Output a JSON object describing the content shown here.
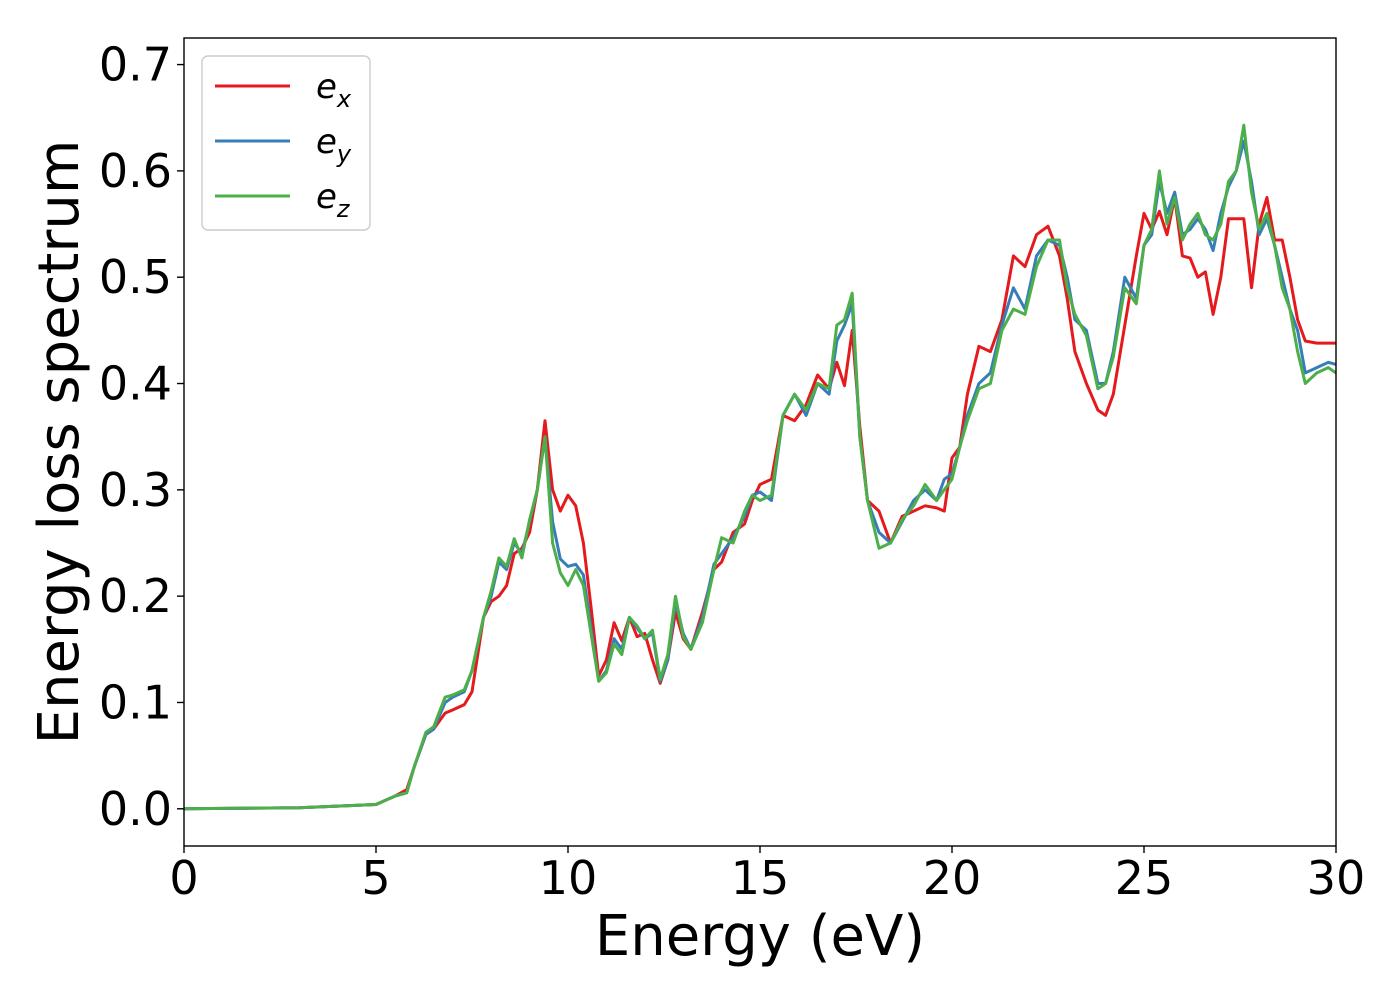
{
  "chart_data": {
    "type": "line",
    "title": "",
    "xlabel": "Energy (eV)",
    "ylabel": "Energy loss spectrum",
    "xlim": [
      0,
      30
    ],
    "ylim": [
      -0.035,
      0.725
    ],
    "xticks": [
      0,
      5,
      10,
      15,
      20,
      25,
      30
    ],
    "yticks": [
      0.0,
      0.1,
      0.2,
      0.3,
      0.4,
      0.5,
      0.6,
      0.7
    ],
    "xtick_labels": [
      "0",
      "5",
      "10",
      "15",
      "20",
      "25",
      "30"
    ],
    "ytick_labels": [
      "0.0",
      "0.1",
      "0.2",
      "0.3",
      "0.4",
      "0.5",
      "0.6",
      "0.7"
    ],
    "grid": false,
    "legend_position": "top-left",
    "series": [
      {
        "name": "e_x",
        "legend_base": "e",
        "legend_sub": "x",
        "color": "#e41a1c",
        "x": [
          0,
          3,
          5,
          5.5,
          5.8,
          6,
          6.3,
          6.5,
          6.8,
          7,
          7.3,
          7.5,
          7.8,
          8,
          8.2,
          8.4,
          8.6,
          8.8,
          9,
          9.2,
          9.4,
          9.6,
          9.8,
          10,
          10.2,
          10.4,
          10.6,
          10.8,
          11,
          11.2,
          11.4,
          11.6,
          11.8,
          12,
          12.2,
          12.4,
          12.6,
          12.8,
          13,
          13.2,
          13.5,
          13.8,
          14,
          14.3,
          14.6,
          14.8,
          15,
          15.3,
          15.6,
          15.9,
          16.2,
          16.5,
          16.8,
          17,
          17.2,
          17.4,
          17.6,
          17.8,
          18.1,
          18.4,
          18.7,
          19,
          19.3,
          19.6,
          19.8,
          20,
          20.2,
          20.4,
          20.7,
          21,
          21.3,
          21.6,
          21.9,
          22.2,
          22.5,
          22.8,
          23,
          23.2,
          23.5,
          23.8,
          24,
          24.2,
          24.5,
          24.8,
          25,
          25.2,
          25.4,
          25.6,
          25.8,
          26,
          26.2,
          26.4,
          26.6,
          26.8,
          27,
          27.2,
          27.4,
          27.6,
          27.8,
          28,
          28.2,
          28.4,
          28.6,
          28.8,
          29,
          29.2,
          29.5,
          29.8,
          30
        ],
        "y": [
          0,
          0.001,
          0.004,
          0.012,
          0.018,
          0.04,
          0.07,
          0.075,
          0.09,
          0.093,
          0.098,
          0.11,
          0.18,
          0.195,
          0.2,
          0.21,
          0.24,
          0.245,
          0.26,
          0.3,
          0.365,
          0.3,
          0.28,
          0.295,
          0.285,
          0.25,
          0.19,
          0.125,
          0.14,
          0.175,
          0.158,
          0.18,
          0.162,
          0.165,
          0.14,
          0.118,
          0.14,
          0.185,
          0.16,
          0.15,
          0.185,
          0.225,
          0.232,
          0.26,
          0.268,
          0.29,
          0.305,
          0.31,
          0.37,
          0.365,
          0.38,
          0.408,
          0.395,
          0.42,
          0.398,
          0.45,
          0.36,
          0.29,
          0.28,
          0.25,
          0.275,
          0.28,
          0.285,
          0.283,
          0.28,
          0.33,
          0.34,
          0.39,
          0.435,
          0.43,
          0.46,
          0.52,
          0.51,
          0.54,
          0.548,
          0.52,
          0.48,
          0.43,
          0.4,
          0.375,
          0.37,
          0.39,
          0.455,
          0.52,
          0.56,
          0.545,
          0.562,
          0.54,
          0.575,
          0.52,
          0.518,
          0.5,
          0.505,
          0.465,
          0.5,
          0.555,
          0.555,
          0.555,
          0.49,
          0.55,
          0.575,
          0.535,
          0.535,
          0.5,
          0.46,
          0.44,
          0.438,
          0.438,
          0.438
        ]
      },
      {
        "name": "e_y",
        "legend_base": "e",
        "legend_sub": "y",
        "color": "#377eb8",
        "x": [
          0,
          3,
          5,
          5.5,
          5.8,
          6,
          6.3,
          6.5,
          6.8,
          7,
          7.3,
          7.5,
          7.8,
          8,
          8.2,
          8.4,
          8.6,
          8.8,
          9,
          9.2,
          9.4,
          9.6,
          9.8,
          10,
          10.2,
          10.4,
          10.6,
          10.8,
          11,
          11.2,
          11.4,
          11.6,
          11.8,
          12,
          12.2,
          12.4,
          12.6,
          12.8,
          13,
          13.2,
          13.5,
          13.8,
          14,
          14.3,
          14.6,
          14.8,
          15,
          15.3,
          15.6,
          15.9,
          16.2,
          16.5,
          16.8,
          17,
          17.2,
          17.4,
          17.6,
          17.8,
          18.1,
          18.4,
          18.7,
          19,
          19.3,
          19.6,
          19.8,
          20,
          20.2,
          20.4,
          20.7,
          21,
          21.3,
          21.6,
          21.9,
          22.2,
          22.5,
          22.8,
          23,
          23.2,
          23.5,
          23.8,
          24,
          24.2,
          24.5,
          24.8,
          25,
          25.2,
          25.4,
          25.6,
          25.8,
          26,
          26.2,
          26.4,
          26.6,
          26.8,
          27,
          27.2,
          27.4,
          27.6,
          27.8,
          28,
          28.2,
          28.4,
          28.6,
          28.8,
          29,
          29.2,
          29.5,
          29.8,
          30
        ],
        "y": [
          0,
          0.001,
          0.004,
          0.012,
          0.015,
          0.04,
          0.07,
          0.075,
          0.1,
          0.105,
          0.11,
          0.13,
          0.18,
          0.2,
          0.232,
          0.225,
          0.25,
          0.24,
          0.27,
          0.3,
          0.35,
          0.27,
          0.235,
          0.228,
          0.23,
          0.22,
          0.17,
          0.12,
          0.13,
          0.16,
          0.15,
          0.18,
          0.17,
          0.16,
          0.165,
          0.12,
          0.14,
          0.195,
          0.165,
          0.15,
          0.18,
          0.23,
          0.24,
          0.255,
          0.275,
          0.295,
          0.298,
          0.29,
          0.37,
          0.39,
          0.37,
          0.4,
          0.39,
          0.44,
          0.455,
          0.475,
          0.35,
          0.29,
          0.26,
          0.25,
          0.27,
          0.29,
          0.3,
          0.29,
          0.31,
          0.315,
          0.34,
          0.37,
          0.4,
          0.41,
          0.455,
          0.49,
          0.47,
          0.52,
          0.535,
          0.53,
          0.5,
          0.46,
          0.45,
          0.4,
          0.4,
          0.43,
          0.5,
          0.48,
          0.53,
          0.54,
          0.59,
          0.56,
          0.58,
          0.54,
          0.545,
          0.555,
          0.545,
          0.525,
          0.56,
          0.585,
          0.6,
          0.628,
          0.59,
          0.54,
          0.555,
          0.53,
          0.5,
          0.47,
          0.45,
          0.41,
          0.415,
          0.42,
          0.418
        ]
      },
      {
        "name": "e_z",
        "legend_base": "e",
        "legend_sub": "z",
        "color": "#4daf4a",
        "x": [
          0,
          3,
          5,
          5.5,
          5.8,
          6,
          6.3,
          6.5,
          6.8,
          7,
          7.3,
          7.5,
          7.8,
          8,
          8.2,
          8.4,
          8.6,
          8.8,
          9,
          9.2,
          9.4,
          9.6,
          9.8,
          10,
          10.2,
          10.4,
          10.6,
          10.8,
          11,
          11.2,
          11.4,
          11.6,
          11.8,
          12,
          12.2,
          12.4,
          12.6,
          12.8,
          13,
          13.2,
          13.5,
          13.8,
          14,
          14.3,
          14.6,
          14.8,
          15,
          15.3,
          15.6,
          15.9,
          16.2,
          16.5,
          16.8,
          17,
          17.2,
          17.4,
          17.6,
          17.8,
          18.1,
          18.4,
          18.7,
          19,
          19.3,
          19.6,
          19.8,
          20,
          20.2,
          20.4,
          20.7,
          21,
          21.3,
          21.6,
          21.9,
          22.2,
          22.5,
          22.8,
          23,
          23.2,
          23.5,
          23.8,
          24,
          24.2,
          24.5,
          24.8,
          25,
          25.2,
          25.4,
          25.6,
          25.8,
          26,
          26.2,
          26.4,
          26.6,
          26.8,
          27,
          27.2,
          27.4,
          27.6,
          27.8,
          28,
          28.2,
          28.4,
          28.6,
          28.8,
          29,
          29.2,
          29.5,
          29.8,
          30
        ],
        "y": [
          0,
          0.001,
          0.004,
          0.012,
          0.015,
          0.04,
          0.072,
          0.077,
          0.105,
          0.107,
          0.112,
          0.13,
          0.18,
          0.205,
          0.236,
          0.228,
          0.254,
          0.236,
          0.272,
          0.3,
          0.35,
          0.25,
          0.222,
          0.21,
          0.225,
          0.21,
          0.165,
          0.12,
          0.128,
          0.155,
          0.145,
          0.18,
          0.172,
          0.16,
          0.168,
          0.122,
          0.145,
          0.2,
          0.162,
          0.15,
          0.175,
          0.225,
          0.255,
          0.25,
          0.28,
          0.295,
          0.29,
          0.295,
          0.37,
          0.39,
          0.375,
          0.4,
          0.395,
          0.455,
          0.46,
          0.485,
          0.35,
          0.29,
          0.245,
          0.25,
          0.272,
          0.285,
          0.305,
          0.29,
          0.3,
          0.31,
          0.34,
          0.365,
          0.395,
          0.4,
          0.45,
          0.47,
          0.465,
          0.51,
          0.535,
          0.535,
          0.49,
          0.465,
          0.445,
          0.395,
          0.4,
          0.425,
          0.49,
          0.475,
          0.53,
          0.545,
          0.6,
          0.55,
          0.575,
          0.535,
          0.55,
          0.56,
          0.54,
          0.535,
          0.55,
          0.59,
          0.6,
          0.643,
          0.58,
          0.545,
          0.56,
          0.53,
          0.49,
          0.47,
          0.43,
          0.4,
          0.41,
          0.415,
          0.41
        ]
      }
    ]
  }
}
